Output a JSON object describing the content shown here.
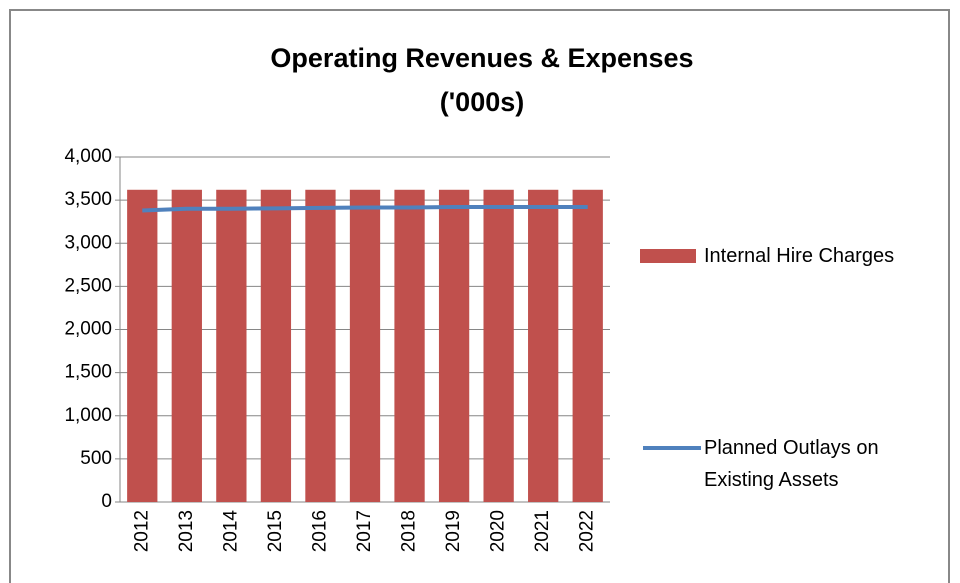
{
  "chart_data": {
    "type": "bar_line",
    "title": [
      "Operating Revenues & Expenses",
      "('000s)"
    ],
    "categories": [
      "2012",
      "2013",
      "2014",
      "2015",
      "2016",
      "2017",
      "2018",
      "2019",
      "2020",
      "2021",
      "2022"
    ],
    "series": [
      {
        "name": "Internal Hire Charges",
        "type": "bar",
        "color": "#c0504d",
        "values": [
          3620,
          3620,
          3620,
          3620,
          3620,
          3620,
          3620,
          3620,
          3620,
          3620,
          3620
        ]
      },
      {
        "name": "Planned Outlays on Existing Assets",
        "type": "line",
        "color": "#4f81bd",
        "values": [
          3380,
          3400,
          3400,
          3405,
          3410,
          3415,
          3415,
          3420,
          3420,
          3420,
          3420
        ]
      }
    ],
    "ylim": [
      0,
      4000
    ],
    "yticks": [
      0,
      500,
      {
        "value": 1000,
        "label": "1,000"
      },
      {
        "value": 1500,
        "label": "1,500"
      },
      {
        "value": 2000,
        "label": "2,000"
      },
      {
        "value": 2500,
        "label": "2,500"
      },
      {
        "value": 3000,
        "label": "3,000"
      },
      {
        "value": 3500,
        "label": "3,500"
      },
      {
        "value": 4000,
        "label": "4,000"
      }
    ],
    "grid": true,
    "legend": "right"
  }
}
